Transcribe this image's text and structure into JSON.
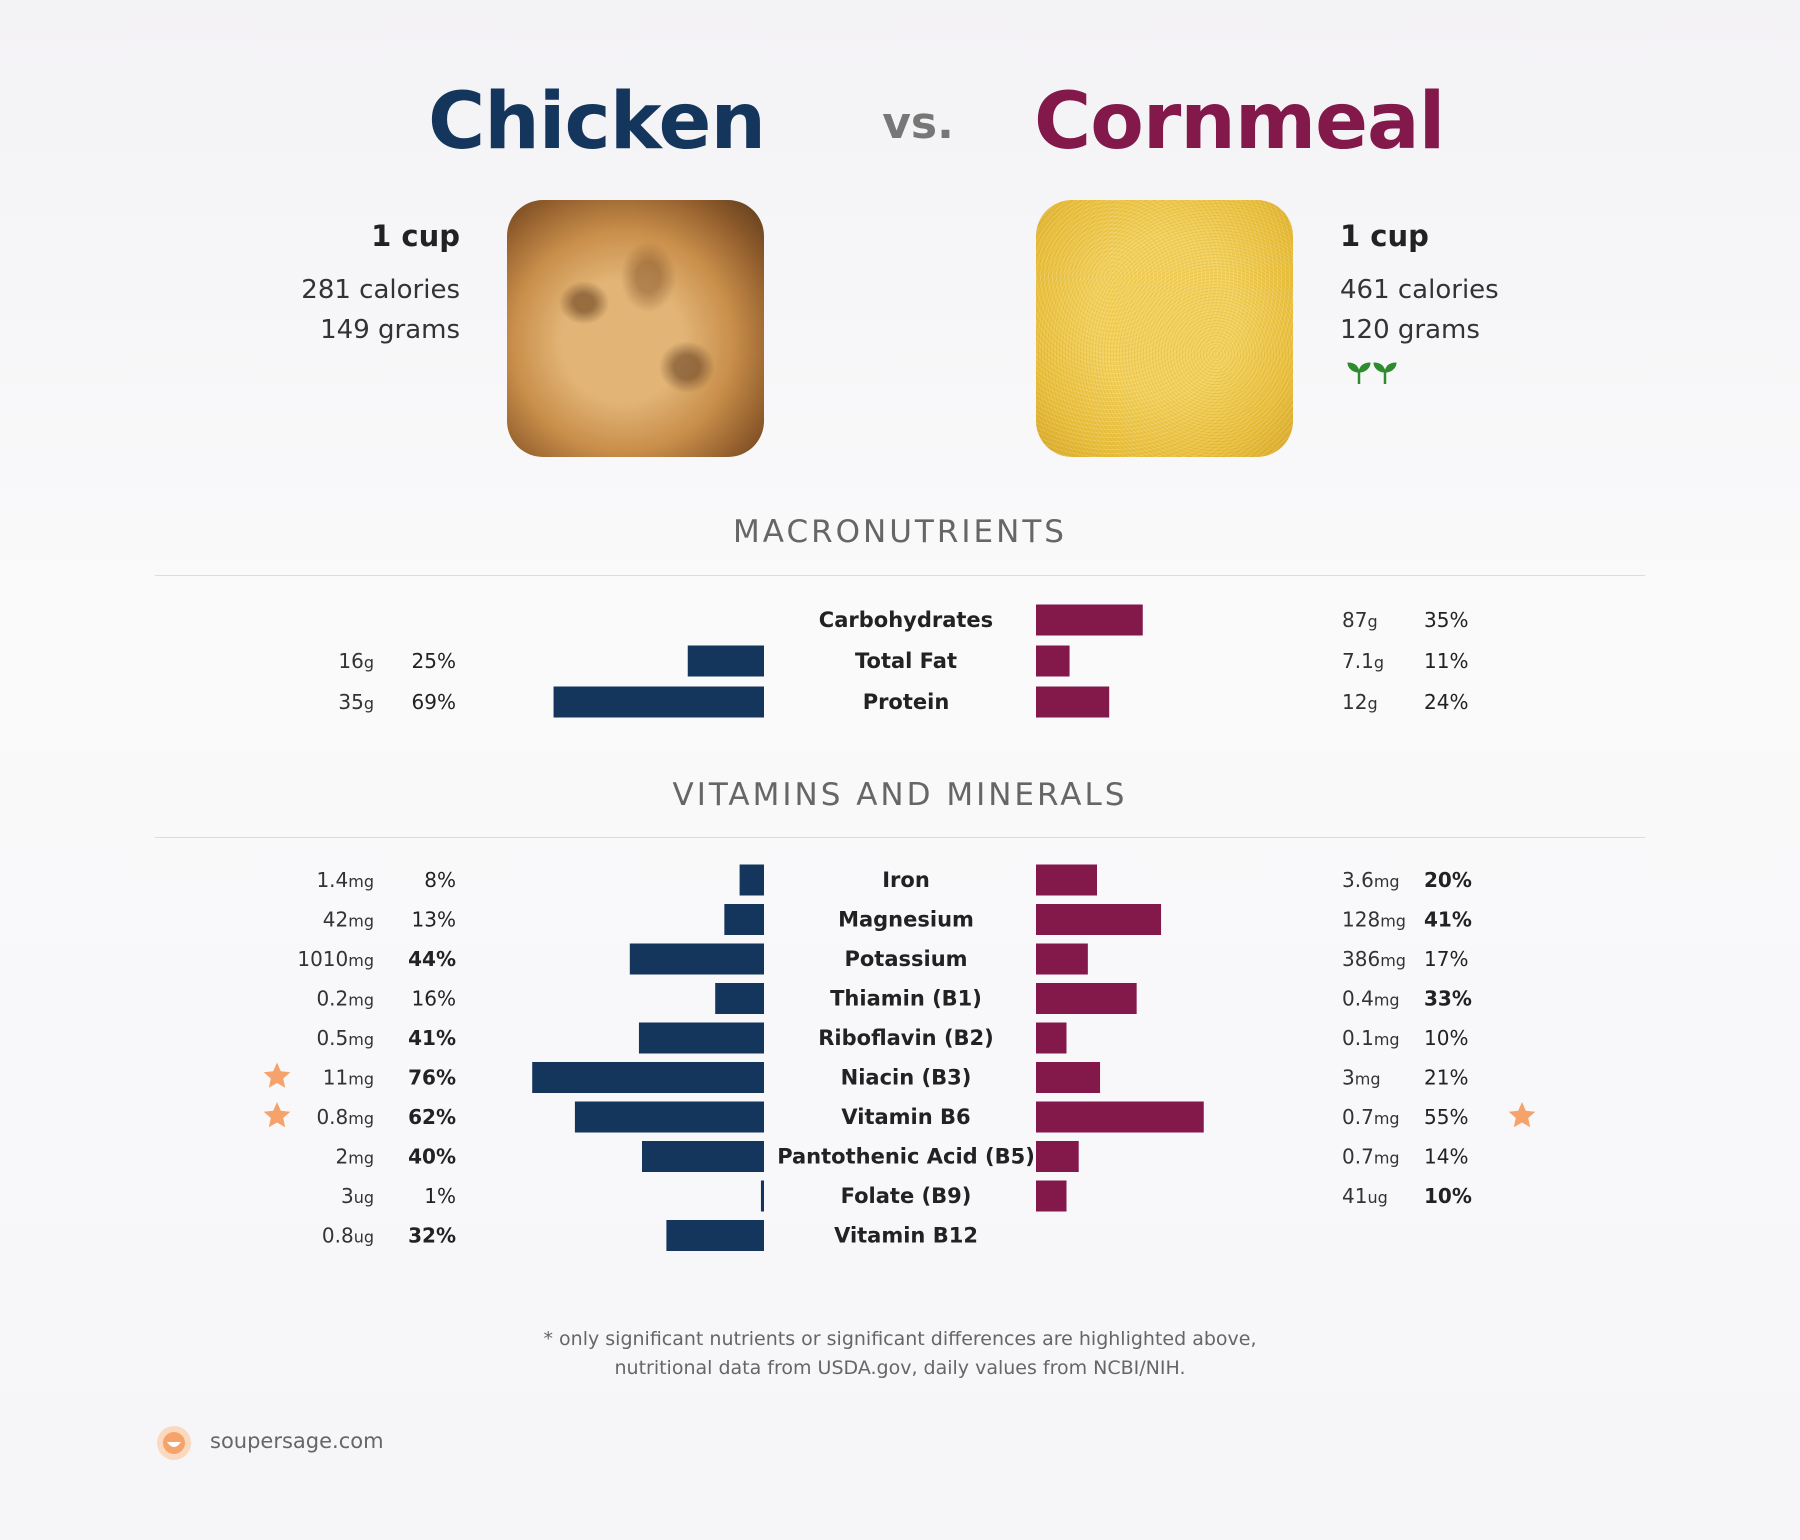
{
  "header": {
    "food_a": "Chicken",
    "vs": "vs.",
    "food_b": "Cornmeal"
  },
  "serving": {
    "a": {
      "unit": "1 cup",
      "calories": "281 calories",
      "grams": "149 grams"
    },
    "b": {
      "unit": "1 cup",
      "calories": "461 calories",
      "grams": "120 grams"
    }
  },
  "colors": {
    "food_a": "#15365c",
    "food_b": "#83184b",
    "star": "#f5a36b",
    "leaf": "#2e8b2e"
  },
  "icons": {
    "food_b_badge": "leaf-icon",
    "highlight": "star-icon",
    "logo": "soupersage-logo-icon"
  },
  "sections": {
    "macro": "MACRONUTRIENTS",
    "vitamins": "VITAMINS AND MINERALS"
  },
  "chart_data": [
    {
      "type": "bar",
      "orientation": "diverging-horizontal",
      "categories": [
        "Carbohydrates",
        "Total Fat",
        "Protein"
      ],
      "series": [
        {
          "name": "Chicken",
          "amounts": [
            "",
            "16",
            "35"
          ],
          "units": [
            "",
            "g",
            "g"
          ],
          "pct_labels": [
            "",
            "25%",
            "69%"
          ],
          "values": [
            null,
            25,
            69
          ]
        },
        {
          "name": "Cornmeal",
          "amounts": [
            "87",
            "7.1",
            "12"
          ],
          "units": [
            "g",
            "g",
            "g"
          ],
          "pct_labels": [
            "35%",
            "11%",
            "24%"
          ],
          "values": [
            35,
            11,
            24
          ]
        }
      ],
      "xlim": [
        0,
        100
      ]
    },
    {
      "type": "bar",
      "orientation": "diverging-horizontal",
      "categories": [
        "Iron",
        "Magnesium",
        "Potassium",
        "Thiamin (B1)",
        "Riboflavin (B2)",
        "Niacin (B3)",
        "Vitamin B6",
        "Pantothenic Acid (B5)",
        "Folate (B9)",
        "Vitamin B12"
      ],
      "series": [
        {
          "name": "Chicken",
          "amounts": [
            "1.4",
            "42",
            "1010",
            "0.2",
            "0.5",
            "11",
            "0.8",
            "2",
            "3",
            "0.8"
          ],
          "units": [
            "mg",
            "mg",
            "mg",
            "mg",
            "mg",
            "mg",
            "mg",
            "mg",
            "ug",
            "ug"
          ],
          "pct_labels": [
            "8%",
            "13%",
            "44%",
            "16%",
            "41%",
            "76%",
            "62%",
            "40%",
            "1%",
            "32%"
          ],
          "values": [
            8,
            13,
            44,
            16,
            41,
            76,
            62,
            40,
            1,
            32
          ],
          "bold": [
            false,
            false,
            true,
            false,
            true,
            true,
            true,
            true,
            false,
            true
          ],
          "star": [
            false,
            false,
            false,
            false,
            false,
            true,
            true,
            false,
            false,
            false
          ]
        },
        {
          "name": "Cornmeal",
          "amounts": [
            "3.6",
            "128",
            "386",
            "0.4",
            "0.1",
            "3",
            "0.7",
            "0.7",
            "41",
            ""
          ],
          "units": [
            "mg",
            "mg",
            "mg",
            "mg",
            "mg",
            "mg",
            "mg",
            "mg",
            "ug",
            ""
          ],
          "pct_labels": [
            "20%",
            "41%",
            "17%",
            "33%",
            "10%",
            "21%",
            "55%",
            "14%",
            "10%",
            ""
          ],
          "values": [
            20,
            41,
            17,
            33,
            10,
            21,
            55,
            14,
            10,
            null
          ],
          "bold": [
            true,
            true,
            false,
            true,
            false,
            false,
            false,
            false,
            true,
            false
          ],
          "star": [
            false,
            false,
            false,
            false,
            false,
            false,
            true,
            false,
            false,
            false
          ]
        }
      ],
      "xlim": [
        0,
        100
      ]
    }
  ],
  "footnote": {
    "line1": "* only significant nutrients or significant differences are highlighted above,",
    "line2": "nutritional data from USDA.gov, daily values from NCBI/NIH."
  },
  "brand": "soupersage.com"
}
